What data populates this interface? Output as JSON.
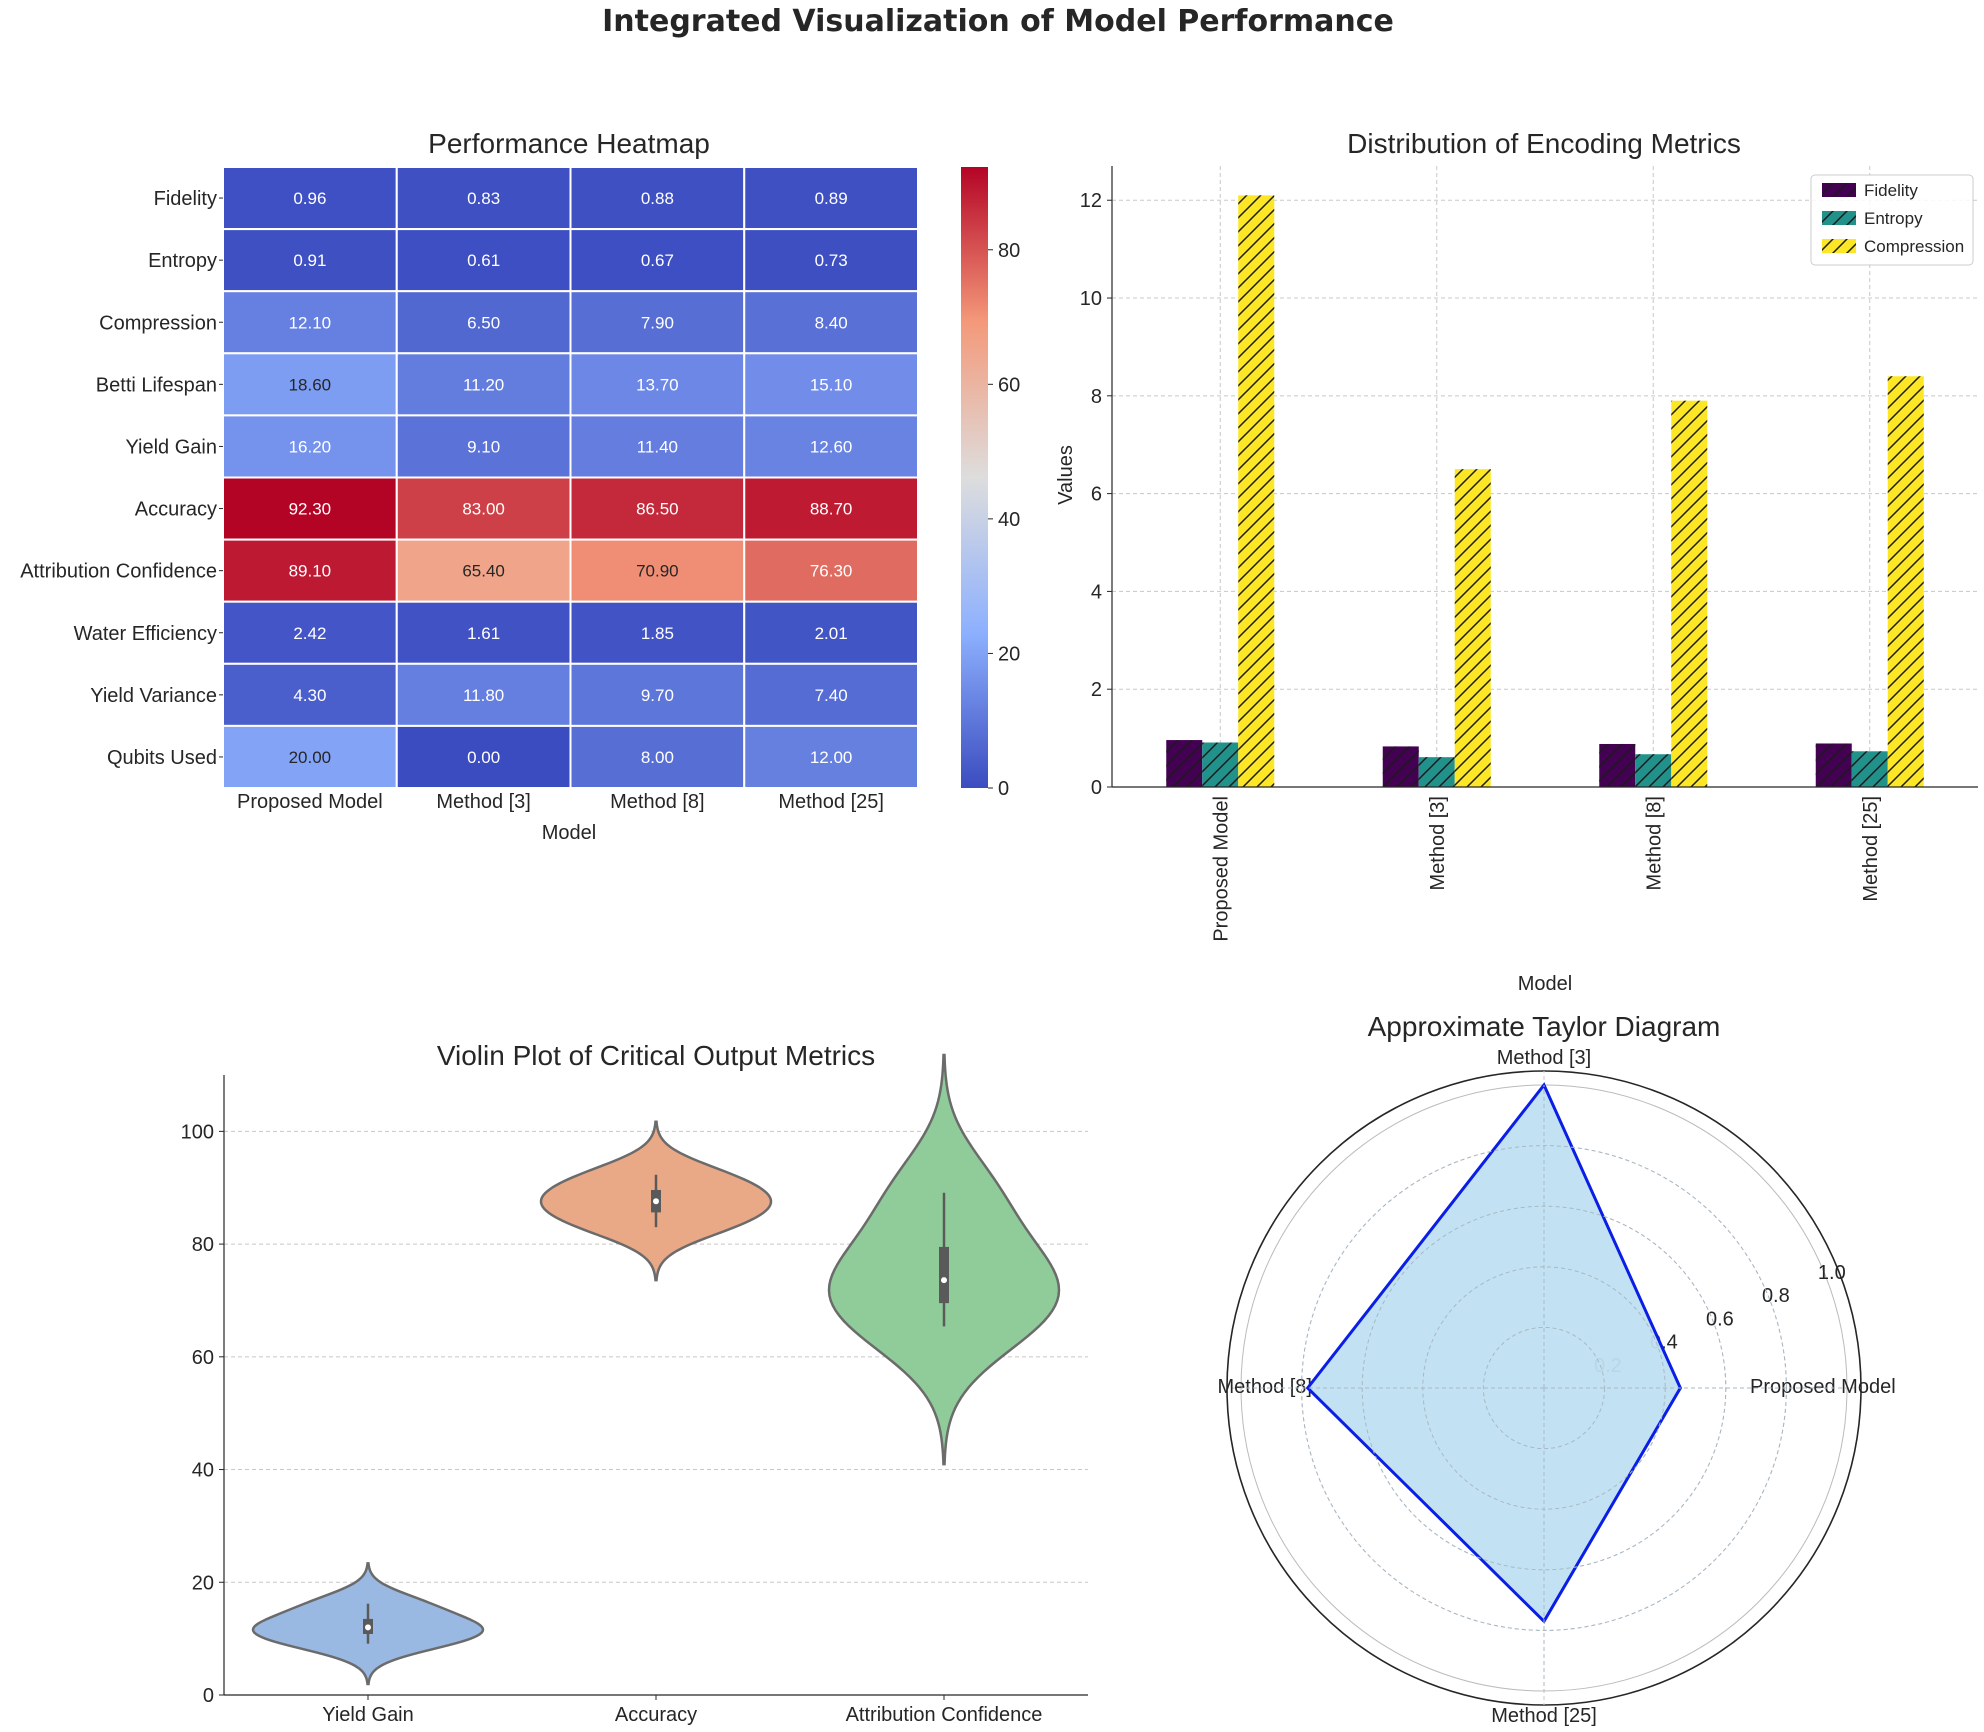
{
  "figure": {
    "title": "Integrated Visualization of Model Performance"
  },
  "chart_data": [
    {
      "type": "heatmap",
      "title": "Performance Heatmap",
      "xlabel": "Model",
      "ylabel": "",
      "x": [
        "Proposed Model",
        "Method [3]",
        "Method [8]",
        "Method [25]"
      ],
      "y": [
        "Fidelity",
        "Entropy",
        "Compression",
        "Betti Lifespan",
        "Yield Gain",
        "Accuracy",
        "Attribution Confidence",
        "Water Efficiency",
        "Yield Variance",
        "Qubits Used"
      ],
      "values": [
        [
          0.96,
          0.83,
          0.88,
          0.89
        ],
        [
          0.91,
          0.61,
          0.67,
          0.73
        ],
        [
          12.1,
          6.5,
          7.9,
          8.4
        ],
        [
          18.6,
          11.2,
          13.7,
          15.1
        ],
        [
          16.2,
          9.1,
          11.4,
          12.6
        ],
        [
          92.3,
          83.0,
          86.5,
          88.7
        ],
        [
          89.1,
          65.4,
          70.9,
          76.3
        ],
        [
          2.42,
          1.61,
          1.85,
          2.01
        ],
        [
          4.3,
          11.8,
          9.7,
          7.4
        ],
        [
          20.0,
          0.0,
          8.0,
          12.0
        ]
      ],
      "colormap": "coolwarm",
      "colorbar": {
        "range": [
          0,
          92.3
        ],
        "ticks": [
          "0",
          "20",
          "40",
          "60",
          "80"
        ]
      }
    },
    {
      "type": "bar",
      "title": "Distribution of Encoding Metrics",
      "xlabel": "Model",
      "ylabel": "Values",
      "categories": [
        "Proposed Model",
        "Method [3]",
        "Method [8]",
        "Method [25]"
      ],
      "series": [
        {
          "name": "Fidelity",
          "values": [
            0.96,
            0.83,
            0.88,
            0.89
          ],
          "color": "#440154"
        },
        {
          "name": "Entropy",
          "values": [
            0.91,
            0.61,
            0.67,
            0.73
          ],
          "color": "#21918c"
        },
        {
          "name": "Compression",
          "values": [
            12.1,
            6.5,
            7.9,
            8.4
          ],
          "color": "#fde725"
        }
      ],
      "ylim": [
        0,
        12.7
      ],
      "yticks": [
        "0",
        "2",
        "4",
        "6",
        "8",
        "10",
        "12"
      ],
      "grid": true,
      "legend": "top-right"
    },
    {
      "type": "violin",
      "title": "Violin Plot of Critical Output Metrics",
      "xlabel": "",
      "ylabel": "",
      "categories": [
        "Yield Gain",
        "Accuracy",
        "Attribution Confidence"
      ],
      "series": [
        {
          "values": [
            16.2,
            9.1,
            11.4,
            12.6
          ],
          "color": "#9ab9e2"
        },
        {
          "values": [
            92.3,
            83.0,
            86.5,
            88.7
          ],
          "color": "#e9a886"
        },
        {
          "values": [
            89.1,
            65.4,
            70.9,
            76.3
          ],
          "color": "#8fcc9a"
        }
      ],
      "ylim": [
        0,
        110
      ],
      "yticks": [
        "0",
        "20",
        "40",
        "60",
        "80",
        "100"
      ],
      "grid": true
    },
    {
      "type": "radar",
      "title": "Approximate Taylor Diagram",
      "categories": [
        "Proposed Model",
        "Method [3]",
        "Method [8]",
        "Method [25]"
      ],
      "values": [
        0.45,
        1.0,
        0.78,
        0.77
      ],
      "rlim": [
        0,
        1.0
      ],
      "rticks": [
        "0.2",
        "0.4",
        "0.6",
        "0.8",
        "1.0"
      ],
      "line_color": "#0a1ee6",
      "fill_color": "#bfe0f2"
    }
  ]
}
